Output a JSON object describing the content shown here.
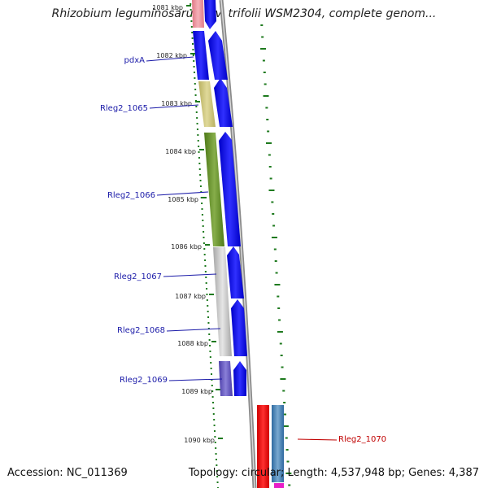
{
  "header": {
    "title": "Rhizobium leguminosarum bv. trifolii WSM2304, complete genom..."
  },
  "footer": {
    "accession": "Accession: NC_011369",
    "summary": "Topology: circular; Length: 4,537,948 bp; Genes: 4,387"
  },
  "ticks": [
    {
      "label": "1081 kbp"
    },
    {
      "label": "1082 kbp"
    },
    {
      "label": "1083 kbp"
    },
    {
      "label": "1084 kbp"
    },
    {
      "label": "1085 kbp"
    },
    {
      "label": "1086 kbp"
    },
    {
      "label": "1087 kbp"
    },
    {
      "label": "1088 kbp"
    },
    {
      "label": "1089 kbp"
    },
    {
      "label": "1090 kbp"
    }
  ],
  "gene_labels": [
    {
      "text": "pdxA",
      "color": "#1a1aa8"
    },
    {
      "text": "Rleg2_1065",
      "color": "#1a1aa8"
    },
    {
      "text": "Rleg2_1066",
      "color": "#1a1aa8"
    },
    {
      "text": "Rleg2_1067",
      "color": "#1a1aa8"
    },
    {
      "text": "Rleg2_1068",
      "color": "#1a1aa8"
    },
    {
      "text": "Rleg2_1069",
      "color": "#1a1aa8"
    },
    {
      "text": "Rleg2_1070",
      "color": "#c00000"
    }
  ],
  "colors": {
    "cds": "#0000ee",
    "backbone": "#8a8a8a",
    "tick_marks": "#1e7a1e"
  }
}
